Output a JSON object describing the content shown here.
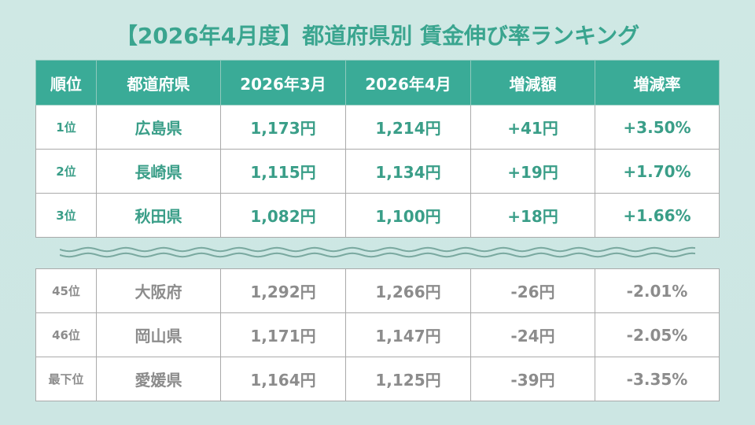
{
  "title": "【2026年4月度】都道府県別 賃金伸び率ランキング",
  "headers": [
    "順位",
    "都道府県",
    "2026年3月",
    "2026年4月",
    "増減額",
    "増減率"
  ],
  "top_rows": [
    [
      "1位",
      "広島県",
      "1,173円",
      "1,214円",
      "+41円",
      "+3.50%"
    ],
    [
      "2位",
      "長崎県",
      "1,115円",
      "1,134円",
      "+19円",
      "+1.70%"
    ],
    [
      "3位",
      "秋田県",
      "1,082円",
      "1,100円",
      "+18円",
      "+1.66%"
    ]
  ],
  "bottom_rows": [
    [
      "45位",
      "大阪府",
      "1,292円",
      "1,266円",
      "-26円",
      "-2.01%"
    ],
    [
      "46位",
      "岡山県",
      "1,171円",
      "1,147円",
      "-24円",
      "-2.05%"
    ],
    [
      "最下位",
      "愛媛県",
      "1,164円",
      "1,125円",
      "-39円",
      "-3.35%"
    ]
  ],
  "colors": {
    "accent": "#3aab97",
    "positive_text": "#3a9e88",
    "negative_text": "#8c8c8c",
    "background": "#cde6e2"
  }
}
